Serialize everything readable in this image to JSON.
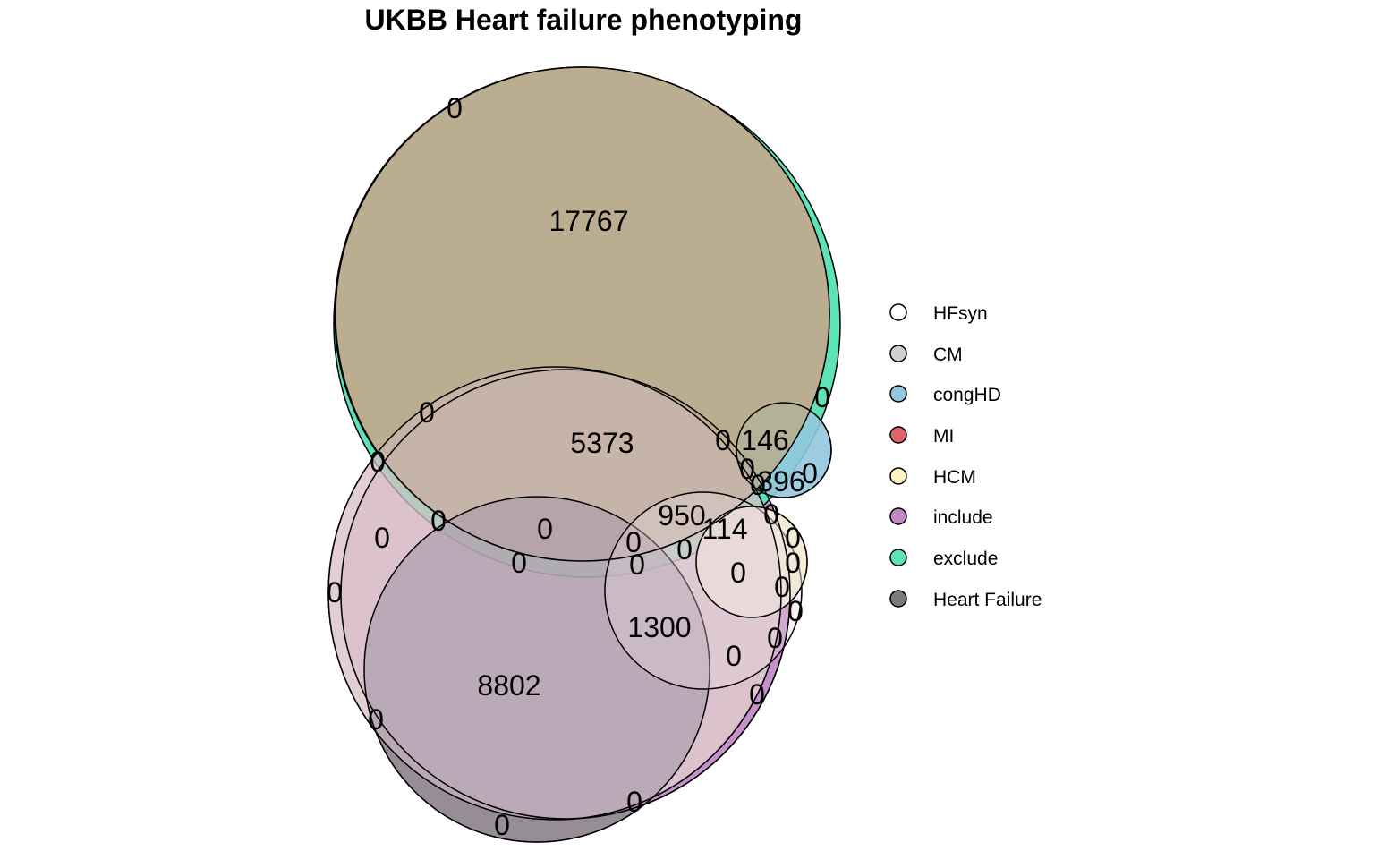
{
  "title": "UKBB Heart failure phenotyping",
  "sets": [
    {
      "key": "hfsyn",
      "name": "HFsyn",
      "color": "#ffffff"
    },
    {
      "key": "cm",
      "name": "CM",
      "color": "#d0d0d0"
    },
    {
      "key": "conghd",
      "name": "congHD",
      "color": "#93c8de"
    },
    {
      "key": "mi",
      "name": "MI",
      "color": "#e06468"
    },
    {
      "key": "hcm",
      "name": "HCM",
      "color": "#fbf4c0"
    },
    {
      "key": "include",
      "name": "include",
      "color": "#c188c6"
    },
    {
      "key": "exclude",
      "name": "exclude",
      "color": "#5ee3b8"
    },
    {
      "key": "heartfailure",
      "name": "Heart Failure",
      "color": "#7a7a7a"
    }
  ],
  "regions": [
    "17767",
    "5373",
    "146",
    "396",
    "950",
    "114",
    "1300",
    "8802",
    "0",
    "0",
    "0",
    "0",
    "0",
    "0",
    "0",
    "0",
    "0",
    "0",
    "0",
    "0",
    "0",
    "0",
    "0",
    "0",
    "0",
    "0",
    "0",
    "0",
    "0",
    "0",
    "0",
    "0",
    "0",
    "0",
    "0",
    "0",
    "0",
    "0",
    "0",
    "0",
    "0",
    "0"
  ]
}
